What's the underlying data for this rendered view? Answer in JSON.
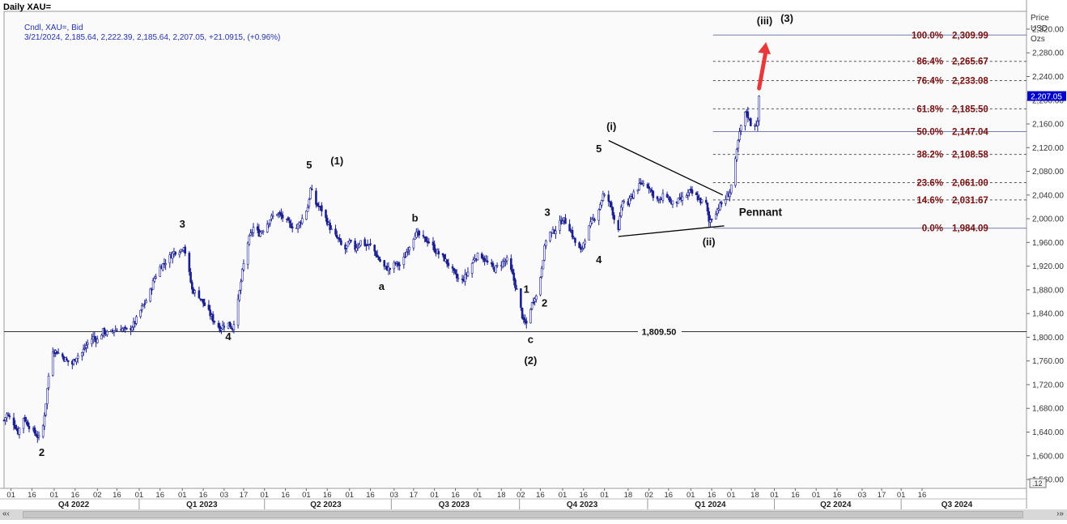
{
  "header": {
    "title": "Daily XAU=",
    "legend_line1": "Cndl, XAU=, Bid",
    "legend_line2": "3/21/2024, 2,185.64, 2,222.39, 2,185.64, 2,207.05, +21.0915, (+0.96%)",
    "price_unit_lines": [
      "Price",
      "USD",
      "Ozs"
    ],
    "last_price_tag": "2,207.05",
    "scale_box": ".12"
  },
  "colors": {
    "candle": "#1a1f8f",
    "fib_text": "#7a1010",
    "fib_line_solid": "#6f7fb0",
    "fib_line_dashed": "#555555",
    "trendline": "#000000",
    "arrow": "#e8383a",
    "price_tag_bg": "#0000cc"
  },
  "chart_data": {
    "type": "candlestick",
    "symbol": "XAU=",
    "timeframe": "Daily",
    "y_axis": {
      "ylim": [
        1545,
        2350
      ],
      "ticks": [
        1560,
        1600,
        1640,
        1680,
        1720,
        1760,
        1800,
        1840,
        1880,
        1920,
        1960,
        2000,
        2040,
        2080,
        2120,
        2160,
        2200,
        2240,
        2280,
        2320
      ],
      "tick_labels": [
        "1,560.00",
        "1,600.00",
        "1,640.00",
        "1,680.00",
        "1,720.00",
        "1,760.00",
        "1,800.00",
        "1,840.00",
        "1,880.00",
        "1,920.00",
        "1,960.00",
        "2,000.00",
        "2,040.00",
        "2,080.00",
        "2,120.00",
        "2,160.00",
        "2,200.00",
        "2,240.00",
        "2,280.00",
        "2,320.00"
      ]
    },
    "x_axis": {
      "range": [
        "2022-09-26",
        "2024-09-29"
      ],
      "day_ticks": [
        {
          "date": "2022-10-01",
          "label": "01"
        },
        {
          "date": "2022-10-16",
          "label": "16"
        },
        {
          "date": "2022-11-01",
          "label": "01"
        },
        {
          "date": "2022-11-16",
          "label": "16"
        },
        {
          "date": "2022-12-02",
          "label": "02"
        },
        {
          "date": "2022-12-16",
          "label": "16"
        },
        {
          "date": "2023-01-01",
          "label": "01"
        },
        {
          "date": "2023-01-16",
          "label": "16"
        },
        {
          "date": "2023-02-01",
          "label": "01"
        },
        {
          "date": "2023-02-16",
          "label": "16"
        },
        {
          "date": "2023-03-03",
          "label": "03"
        },
        {
          "date": "2023-03-17",
          "label": "17"
        },
        {
          "date": "2023-04-01",
          "label": "01"
        },
        {
          "date": "2023-04-16",
          "label": "16"
        },
        {
          "date": "2023-05-01",
          "label": "01"
        },
        {
          "date": "2023-05-16",
          "label": "16"
        },
        {
          "date": "2023-06-01",
          "label": "01"
        },
        {
          "date": "2023-06-16",
          "label": "16"
        },
        {
          "date": "2023-07-03",
          "label": "03"
        },
        {
          "date": "2023-07-17",
          "label": "17"
        },
        {
          "date": "2023-08-01",
          "label": "01"
        },
        {
          "date": "2023-08-16",
          "label": "16"
        },
        {
          "date": "2023-09-01",
          "label": "01"
        },
        {
          "date": "2023-09-18",
          "label": "18"
        },
        {
          "date": "2023-10-02",
          "label": "02"
        },
        {
          "date": "2023-10-16",
          "label": "16"
        },
        {
          "date": "2023-11-01",
          "label": "01"
        },
        {
          "date": "2023-11-16",
          "label": "16"
        },
        {
          "date": "2023-12-01",
          "label": "01"
        },
        {
          "date": "2023-12-18",
          "label": "18"
        },
        {
          "date": "2024-01-02",
          "label": "02"
        },
        {
          "date": "2024-01-16",
          "label": "16"
        },
        {
          "date": "2024-02-01",
          "label": "01"
        },
        {
          "date": "2024-02-16",
          "label": "16"
        },
        {
          "date": "2024-03-01",
          "label": "01"
        },
        {
          "date": "2024-03-18",
          "label": "18"
        },
        {
          "date": "2024-04-01",
          "label": "01"
        },
        {
          "date": "2024-04-16",
          "label": "16"
        },
        {
          "date": "2024-05-01",
          "label": "01"
        },
        {
          "date": "2024-05-16",
          "label": "16"
        },
        {
          "date": "2024-06-03",
          "label": "03"
        },
        {
          "date": "2024-06-17",
          "label": "17"
        },
        {
          "date": "2024-07-01",
          "label": "01"
        },
        {
          "date": "2024-07-16",
          "label": "16"
        }
      ],
      "quarter_labels": [
        {
          "date": "2022-11-15",
          "label": "Q4 2022"
        },
        {
          "date": "2023-02-15",
          "label": "Q1 2023"
        },
        {
          "date": "2023-05-15",
          "label": "Q2 2023"
        },
        {
          "date": "2023-08-15",
          "label": "Q3 2023"
        },
        {
          "date": "2023-11-15",
          "label": "Q4 2023"
        },
        {
          "date": "2024-02-15",
          "label": "Q1 2024"
        },
        {
          "date": "2024-05-15",
          "label": "Q2 2024"
        },
        {
          "date": "2024-08-10",
          "label": "Q3 2024"
        }
      ],
      "quarter_bounds": [
        "2023-01-01",
        "2023-04-01",
        "2023-07-01",
        "2023-10-01",
        "2024-01-01",
        "2024-04-01",
        "2024-07-01"
      ]
    },
    "price_anchors": [
      [
        "2022-09-26",
        1660
      ],
      [
        "2022-09-28",
        1670
      ],
      [
        "2022-10-03",
        1655
      ],
      [
        "2022-10-06",
        1640
      ],
      [
        "2022-10-10",
        1665
      ],
      [
        "2022-10-14",
        1650
      ],
      [
        "2022-10-21",
        1630
      ],
      [
        "2022-10-24",
        1650
      ],
      [
        "2022-10-26",
        1690
      ],
      [
        "2022-10-30",
        1780
      ],
      [
        "2022-11-03",
        1775
      ],
      [
        "2022-11-06",
        1770
      ],
      [
        "2022-11-10",
        1760
      ],
      [
        "2022-11-14",
        1755
      ],
      [
        "2022-11-17",
        1768
      ],
      [
        "2022-11-21",
        1774
      ],
      [
        "2022-11-25",
        1790
      ],
      [
        "2022-11-29",
        1800
      ],
      [
        "2022-12-02",
        1795
      ],
      [
        "2022-12-06",
        1810
      ],
      [
        "2022-12-10",
        1805
      ],
      [
        "2022-12-14",
        1812
      ],
      [
        "2022-12-19",
        1815
      ],
      [
        "2022-12-24",
        1810
      ],
      [
        "2022-12-29",
        1825
      ],
      [
        "2023-01-03",
        1850
      ],
      [
        "2023-01-08",
        1870
      ],
      [
        "2023-01-12",
        1900
      ],
      [
        "2023-01-16",
        1918
      ],
      [
        "2023-01-21",
        1930
      ],
      [
        "2023-01-26",
        1944
      ],
      [
        "2023-01-31",
        1948
      ],
      [
        "2023-02-02",
        1955
      ],
      [
        "2023-02-05",
        1920
      ],
      [
        "2023-02-08",
        1880
      ],
      [
        "2023-02-13",
        1870
      ],
      [
        "2023-02-18",
        1850
      ],
      [
        "2023-02-23",
        1830
      ],
      [
        "2023-02-28",
        1815
      ],
      [
        "2023-03-05",
        1825
      ],
      [
        "2023-03-09",
        1815
      ],
      [
        "2023-03-13",
        1860
      ],
      [
        "2023-03-16",
        1910
      ],
      [
        "2023-03-20",
        1960
      ],
      [
        "2023-03-24",
        1985
      ],
      [
        "2023-03-28",
        1975
      ],
      [
        "2023-04-01",
        1985
      ],
      [
        "2023-04-05",
        2000
      ],
      [
        "2023-04-10",
        2010
      ],
      [
        "2023-04-15",
        2000
      ],
      [
        "2023-04-19",
        1990
      ],
      [
        "2023-04-24",
        1985
      ],
      [
        "2023-04-28",
        2000
      ],
      [
        "2023-05-02",
        2020
      ],
      [
        "2023-05-04",
        2050
      ],
      [
        "2023-05-08",
        2025
      ],
      [
        "2023-05-12",
        2015
      ],
      [
        "2023-05-16",
        1995
      ],
      [
        "2023-05-20",
        1975
      ],
      [
        "2023-05-24",
        1965
      ],
      [
        "2023-05-28",
        1945
      ],
      [
        "2023-06-01",
        1960
      ],
      [
        "2023-06-05",
        1950
      ],
      [
        "2023-06-09",
        1962
      ],
      [
        "2023-06-13",
        1955
      ],
      [
        "2023-06-17",
        1955
      ],
      [
        "2023-06-21",
        1935
      ],
      [
        "2023-06-26",
        1918
      ],
      [
        "2023-06-30",
        1915
      ],
      [
        "2023-07-04",
        1925
      ],
      [
        "2023-07-08",
        1920
      ],
      [
        "2023-07-13",
        1950
      ],
      [
        "2023-07-18",
        1975
      ],
      [
        "2023-07-21",
        1972
      ],
      [
        "2023-07-25",
        1965
      ],
      [
        "2023-07-29",
        1960
      ],
      [
        "2023-08-02",
        1945
      ],
      [
        "2023-08-07",
        1935
      ],
      [
        "2023-08-12",
        1920
      ],
      [
        "2023-08-17",
        1900
      ],
      [
        "2023-08-21",
        1895
      ],
      [
        "2023-08-25",
        1910
      ],
      [
        "2023-08-30",
        1935
      ],
      [
        "2023-09-03",
        1940
      ],
      [
        "2023-09-08",
        1925
      ],
      [
        "2023-09-13",
        1915
      ],
      [
        "2023-09-18",
        1925
      ],
      [
        "2023-09-22",
        1930
      ],
      [
        "2023-09-26",
        1905
      ],
      [
        "2023-09-30",
        1870
      ],
      [
        "2023-10-04",
        1825
      ],
      [
        "2023-10-07",
        1822
      ],
      [
        "2023-10-09",
        1850
      ],
      [
        "2023-10-12",
        1870
      ],
      [
        "2023-10-14",
        1868
      ],
      [
        "2023-10-17",
        1920
      ],
      [
        "2023-10-21",
        1980
      ],
      [
        "2023-10-24",
        1975
      ],
      [
        "2023-10-28",
        1985
      ],
      [
        "2023-11-01",
        2000
      ],
      [
        "2023-11-05",
        1990
      ],
      [
        "2023-11-10",
        1960
      ],
      [
        "2023-11-14",
        1945
      ],
      [
        "2023-11-18",
        1975
      ],
      [
        "2023-11-22",
        1995
      ],
      [
        "2023-11-26",
        2010
      ],
      [
        "2023-11-30",
        2040
      ],
      [
        "2023-12-04",
        2030
      ],
      [
        "2023-12-06",
        2020
      ],
      [
        "2023-12-09",
        1990
      ],
      [
        "2023-12-11",
        1985
      ],
      [
        "2023-12-14",
        2030
      ],
      [
        "2023-12-18",
        2025
      ],
      [
        "2023-12-22",
        2045
      ],
      [
        "2023-12-28",
        2060
      ],
      [
        "2024-01-02",
        2055
      ],
      [
        "2024-01-06",
        2035
      ],
      [
        "2024-01-10",
        2030
      ],
      [
        "2024-01-14",
        2045
      ],
      [
        "2024-01-18",
        2025
      ],
      [
        "2024-01-23",
        2030
      ],
      [
        "2024-01-27",
        2035
      ],
      [
        "2024-01-31",
        2045
      ],
      [
        "2024-02-04",
        2040
      ],
      [
        "2024-02-08",
        2030
      ],
      [
        "2024-02-12",
        2025
      ],
      [
        "2024-02-14",
        1995
      ],
      [
        "2024-02-17",
        2005
      ],
      [
        "2024-02-21",
        2020
      ],
      [
        "2024-02-25",
        2030
      ],
      [
        "2024-02-29",
        2045
      ],
      [
        "2024-03-03",
        2080
      ],
      [
        "2024-03-06",
        2130
      ],
      [
        "2024-03-09",
        2170
      ],
      [
        "2024-03-12",
        2180
      ],
      [
        "2024-03-15",
        2160
      ],
      [
        "2024-03-18",
        2160
      ],
      [
        "2024-03-20",
        2160
      ],
      [
        "2024-03-21",
        2207
      ]
    ],
    "reference_lines": [
      {
        "value": 1809.5,
        "label": "1,809.50"
      }
    ],
    "fibonacci_levels": [
      {
        "pct": "100.0%",
        "value": 2309.99,
        "label": "2,309.99",
        "solid": true
      },
      {
        "pct": "86.4%",
        "value": 2265.67,
        "label": "2,265.67",
        "solid": false
      },
      {
        "pct": "76.4%",
        "value": 2233.08,
        "label": "2,233.08",
        "solid": false
      },
      {
        "pct": "61.8%",
        "value": 2185.5,
        "label": "2,185.50",
        "solid": false
      },
      {
        "pct": "50.0%",
        "value": 2147.04,
        "label": "2,147.04",
        "solid": true
      },
      {
        "pct": "38.2%",
        "value": 2108.58,
        "label": "2,108.58",
        "solid": false
      },
      {
        "pct": "23.6%",
        "value": 2061.0,
        "label": "2,061.00",
        "solid": false
      },
      {
        "pct": "14.6%",
        "value": 2031.67,
        "label": "2,031.67",
        "solid": false
      },
      {
        "pct": "0.0%",
        "value": 1984.09,
        "label": "1,984.09",
        "solid": true
      }
    ],
    "fib_range": {
      "from": "2024-02-17",
      "to": "2024-09-29"
    },
    "trendlines": [
      {
        "name": "pennant-upper",
        "from": {
          "date": "2023-12-04",
          "price": 2132
        },
        "to": {
          "date": "2024-02-24",
          "price": 2040
        }
      },
      {
        "name": "pennant-lower",
        "from": {
          "date": "2023-12-11",
          "price": 1970
        },
        "to": {
          "date": "2024-02-25",
          "price": 1988
        }
      }
    ],
    "arrow": {
      "from": {
        "date": "2024-03-21",
        "price": 2220
      },
      "to": {
        "date": "2024-03-26",
        "price": 2298
      }
    },
    "annotations": [
      {
        "text": "2",
        "date": "2022-10-23",
        "price": 1600
      },
      {
        "text": "3",
        "date": "2023-02-01",
        "price": 1985
      },
      {
        "text": "4",
        "date": "2023-03-06",
        "price": 1795
      },
      {
        "text": "5",
        "date": "2023-05-03",
        "price": 2085
      },
      {
        "text": "(1)",
        "date": "2023-05-23",
        "price": 2092
      },
      {
        "text": "a",
        "date": "2023-06-24",
        "price": 1880
      },
      {
        "text": "b",
        "date": "2023-07-18",
        "price": 1995
      },
      {
        "text": "1",
        "date": "2023-10-06",
        "price": 1875
      },
      {
        "text": "2",
        "date": "2023-10-19",
        "price": 1852
      },
      {
        "text": "3",
        "date": "2023-10-21",
        "price": 2005
      },
      {
        "text": "c",
        "date": "2023-10-09",
        "price": 1790
      },
      {
        "text": "(2)",
        "date": "2023-10-09",
        "price": 1755
      },
      {
        "text": "4",
        "date": "2023-11-27",
        "price": 1925
      },
      {
        "text": "5",
        "date": "2023-11-27",
        "price": 2112
      },
      {
        "text": "(i)",
        "date": "2023-12-06",
        "price": 2150
      },
      {
        "text": "(ii)",
        "date": "2024-02-14",
        "price": 1955
      },
      {
        "text": "Pennant",
        "date": "2024-03-22",
        "price": 2005
      },
      {
        "text": "(iii)",
        "date": "2024-03-25",
        "price": 2328
      },
      {
        "text": "(3)",
        "date": "2024-04-10",
        "price": 2332
      }
    ]
  }
}
